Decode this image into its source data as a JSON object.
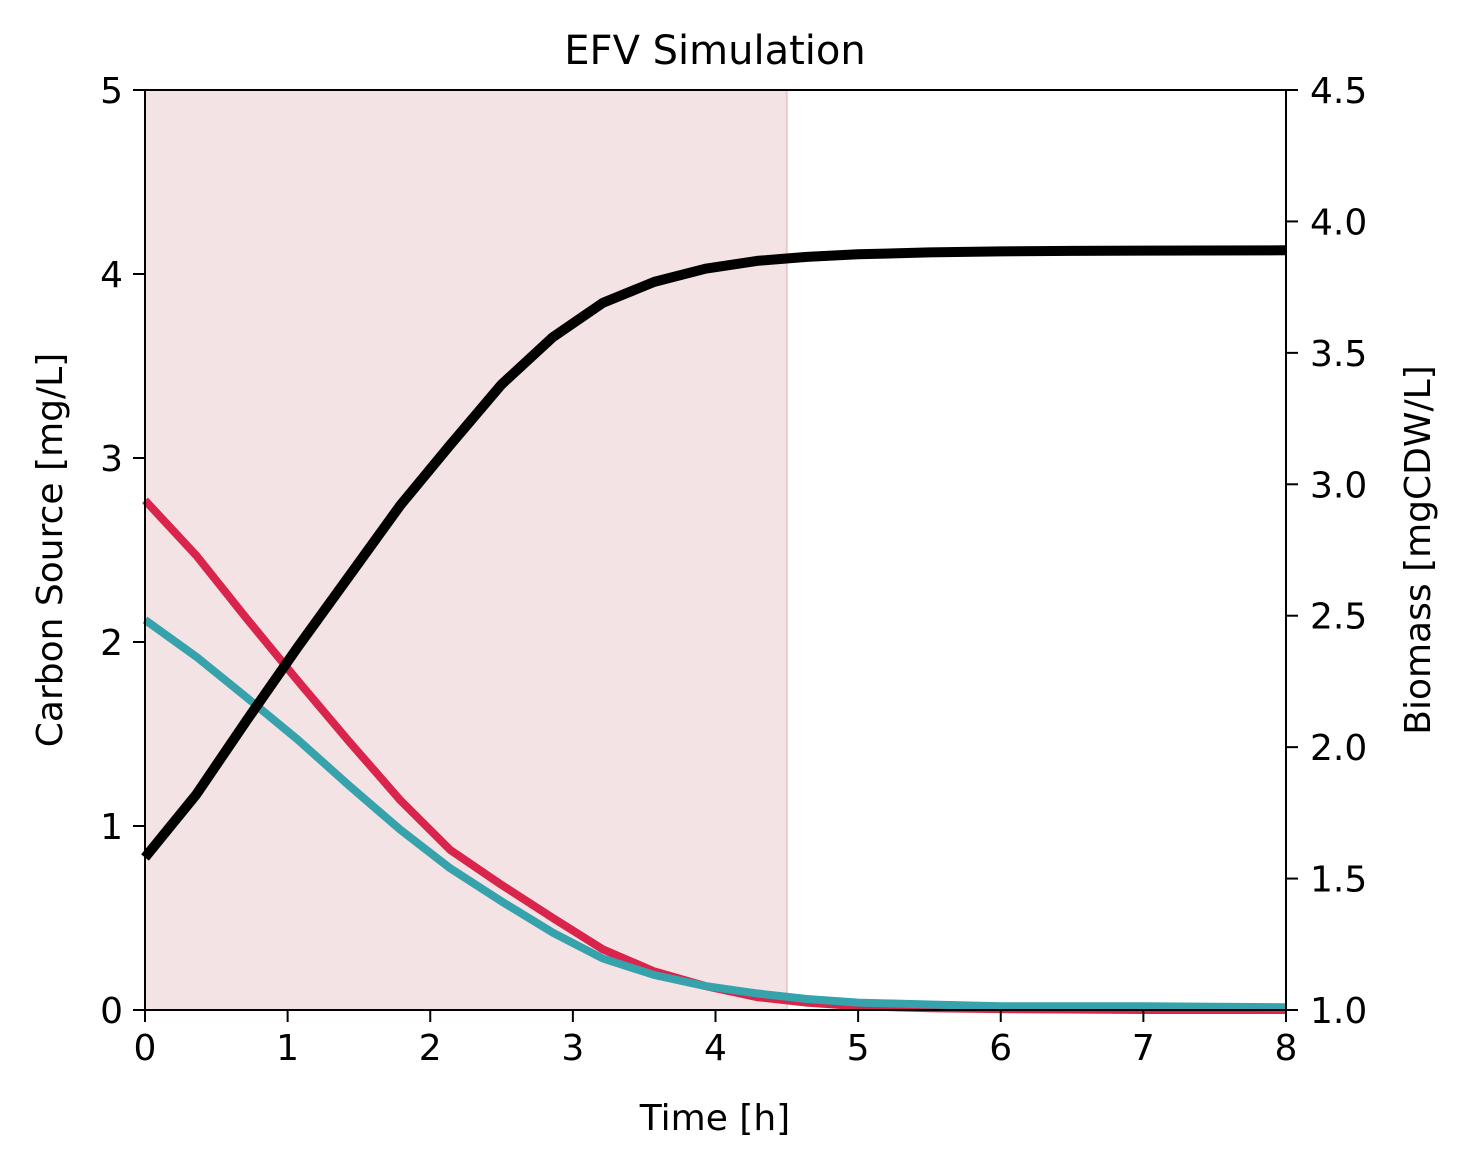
{
  "chart_data": {
    "type": "line",
    "title": "EFV Simulation",
    "xlabel": "Time [h]",
    "ylabel_left": "Carbon Source [mg/L]",
    "ylabel_right": "Biomass [mgCDW/L]",
    "xlim": [
      0,
      8
    ],
    "ylim_left": [
      0,
      5
    ],
    "ylim_right": [
      1.0,
      4.5
    ],
    "x_ticks": [
      "0",
      "1",
      "2",
      "3",
      "4",
      "5",
      "6",
      "7",
      "8"
    ],
    "y_left_ticks": [
      "0",
      "1",
      "2",
      "3",
      "4",
      "5"
    ],
    "y_right_ticks": [
      "1.0",
      "1.5",
      "2.0",
      "2.5",
      "3.0",
      "3.5",
      "4.0",
      "4.5"
    ],
    "grid": false,
    "shaded_region": {
      "x": [
        0,
        4.5
      ],
      "color": "#f3e3e4"
    },
    "series": [
      {
        "axis": "left",
        "color": "#d9254c",
        "x": [
          0,
          0.36,
          0.71,
          1.07,
          1.43,
          1.79,
          2.14,
          2.5,
          2.86,
          3.21,
          3.57,
          3.93,
          4.29,
          4.64,
          5.0,
          5.5,
          6.0,
          7.0,
          8.0
        ],
        "y": [
          2.77,
          2.47,
          2.13,
          1.79,
          1.46,
          1.14,
          0.87,
          0.68,
          0.5,
          0.33,
          0.21,
          0.13,
          0.07,
          0.04,
          0.02,
          0.01,
          0.005,
          0.0,
          0.0
        ]
      },
      {
        "axis": "left",
        "color": "#36a2ab",
        "x": [
          0,
          0.36,
          0.71,
          1.07,
          1.43,
          1.79,
          2.14,
          2.5,
          2.86,
          3.21,
          3.57,
          3.93,
          4.29,
          4.64,
          5.0,
          5.5,
          6.0,
          7.0,
          8.0
        ],
        "y": [
          2.12,
          1.92,
          1.7,
          1.47,
          1.22,
          0.98,
          0.77,
          0.59,
          0.42,
          0.28,
          0.19,
          0.13,
          0.09,
          0.06,
          0.04,
          0.03,
          0.02,
          0.02,
          0.015
        ]
      },
      {
        "axis": "right",
        "color": "#000000",
        "x": [
          0,
          0.36,
          0.71,
          1.07,
          1.43,
          1.79,
          2.14,
          2.5,
          2.86,
          3.21,
          3.57,
          3.93,
          4.29,
          4.64,
          5.0,
          5.5,
          6.0,
          6.5,
          7.0,
          8.0
        ],
        "y": [
          1.58,
          1.82,
          2.1,
          2.38,
          2.65,
          2.92,
          3.15,
          3.38,
          3.56,
          3.69,
          3.77,
          3.82,
          3.85,
          3.865,
          3.875,
          3.882,
          3.886,
          3.888,
          3.889,
          3.89
        ]
      }
    ]
  }
}
